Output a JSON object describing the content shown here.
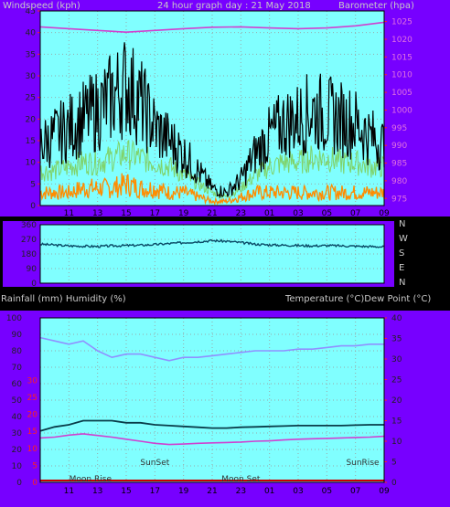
{
  "chart_data": [
    {
      "type": "line",
      "title": "24 hour graph day : 21 May 2018",
      "ylabel_left": "Windspeed (kph)",
      "ylabel_right": "Barometer (hpa)",
      "x_ticks": [
        "11",
        "13",
        "15",
        "17",
        "19",
        "21",
        "23",
        "01",
        "03",
        "05",
        "07",
        "09"
      ],
      "y_left_ticks": [
        0,
        5,
        10,
        15,
        20,
        25,
        30,
        35,
        40,
        45
      ],
      "y_left_range": [
        0,
        45
      ],
      "y_right_ticks": [
        975,
        980,
        985,
        990,
        995,
        1000,
        1005,
        1010,
        1015,
        1020,
        1025
      ],
      "y_right_range": [
        973,
        1028
      ],
      "colors": {
        "gust": "#000000",
        "avg": "#7fd36a",
        "windrun": "#ff8c00",
        "barometer": "#d040d0",
        "bg": "#80ffff",
        "frame": "#7700ff"
      },
      "series": [
        {
          "key": "gust",
          "hours": [
            9,
            10,
            11,
            12,
            13,
            14,
            15,
            16,
            17,
            18,
            19,
            20,
            21,
            22,
            23,
            24,
            25,
            26,
            27,
            28,
            29,
            30,
            31,
            32,
            33
          ],
          "values": [
            14,
            16,
            18,
            20,
            22,
            25,
            28,
            24,
            18,
            15,
            12,
            8,
            4,
            3,
            6,
            12,
            16,
            19,
            20,
            22,
            21,
            20,
            19,
            16,
            14
          ]
        },
        {
          "key": "avg",
          "hours": [
            9,
            10,
            11,
            12,
            13,
            14,
            15,
            16,
            17,
            18,
            19,
            20,
            21,
            22,
            23,
            24,
            25,
            26,
            27,
            28,
            29,
            30,
            31,
            32,
            33
          ],
          "values": [
            8,
            8,
            9,
            10,
            10,
            11,
            12,
            11,
            10,
            9,
            7,
            5,
            3,
            2,
            4,
            7,
            9,
            10,
            10,
            11,
            11,
            10,
            10,
            9,
            9
          ]
        },
        {
          "key": "windrun",
          "hours": [
            9,
            10,
            11,
            12,
            13,
            14,
            15,
            16,
            17,
            18,
            19,
            20,
            21,
            22,
            23,
            24,
            25,
            26,
            27,
            28,
            29,
            30,
            31,
            32,
            33
          ],
          "values": [
            3,
            3,
            3,
            4,
            4,
            4,
            5,
            4,
            4,
            3,
            3,
            2,
            1,
            1,
            2,
            3,
            3,
            3,
            3,
            3,
            3,
            3,
            3,
            3,
            3
          ]
        },
        {
          "key": "barometer",
          "hours": [
            9,
            11,
            13,
            15,
            17,
            19,
            21,
            23,
            25,
            27,
            29,
            31,
            33
          ],
          "values": [
            1023.5,
            1023.0,
            1022.5,
            1022.0,
            1022.5,
            1023.0,
            1023.4,
            1023.5,
            1023.2,
            1023.0,
            1023.2,
            1023.8,
            1024.8
          ]
        }
      ]
    },
    {
      "type": "line",
      "x_ticks": [
        "11",
        "13",
        "15",
        "17",
        "19",
        "21",
        "23",
        "01",
        "03",
        "05",
        "07",
        "09"
      ],
      "y_ticks": [
        0,
        90,
        180,
        270,
        360
      ],
      "y_range": [
        0,
        360
      ],
      "right_labels": [
        "N",
        "W",
        "S",
        "E",
        "N"
      ],
      "series": [
        {
          "key": "direction",
          "hours": [
            9,
            10,
            11,
            12,
            13,
            14,
            15,
            16,
            17,
            18,
            19,
            20,
            21,
            22,
            23,
            24,
            25,
            26,
            27,
            28,
            29,
            30,
            31,
            32,
            33
          ],
          "values": [
            240,
            235,
            230,
            228,
            226,
            230,
            232,
            234,
            238,
            244,
            250,
            256,
            262,
            258,
            250,
            240,
            236,
            234,
            232,
            230,
            232,
            230,
            228,
            226,
            224
          ]
        }
      ]
    },
    {
      "type": "line",
      "ylabel_left": "Rainfall (mm)  Humidity (%)",
      "ylabel_right": "Temperature (°C)Dew Point (°C)",
      "x_ticks": [
        "11",
        "13",
        "15",
        "17",
        "19",
        "21",
        "23",
        "01",
        "03",
        "05",
        "07",
        "09"
      ],
      "y_left_ticks": [
        0,
        10,
        20,
        30,
        40,
        50,
        60,
        70,
        80,
        90,
        100
      ],
      "y_left_range": [
        0,
        100
      ],
      "y_rain_ticks": [
        0,
        5,
        10,
        15,
        20,
        25,
        30
      ],
      "y_right_ticks": [
        0,
        5,
        10,
        15,
        20,
        25,
        30,
        35,
        40
      ],
      "y_right_range": [
        0,
        40
      ],
      "annotations": [
        {
          "text": "Moon Rise",
          "hour": 12.5
        },
        {
          "text": "SunSet",
          "hour": 17
        },
        {
          "text": "Moon Set",
          "hour": 23
        },
        {
          "text": "SunRise",
          "hour": 31.5
        }
      ],
      "series": [
        {
          "key": "humidity",
          "hours": [
            9,
            10,
            11,
            12,
            13,
            14,
            15,
            16,
            17,
            18,
            19,
            20,
            21,
            22,
            23,
            24,
            25,
            26,
            27,
            28,
            29,
            30,
            31,
            32,
            33
          ],
          "values": [
            88,
            86,
            84,
            86,
            80,
            76,
            78,
            78,
            76,
            74,
            76,
            76,
            77,
            78,
            79,
            80,
            80,
            80,
            81,
            81,
            82,
            83,
            83,
            84,
            84
          ]
        },
        {
          "key": "temperature",
          "hours": [
            9,
            10,
            11,
            12,
            13,
            14,
            15,
            16,
            17,
            18,
            19,
            20,
            21,
            22,
            23,
            24,
            25,
            26,
            27,
            28,
            29,
            30,
            31,
            32,
            33
          ],
          "values": [
            12.5,
            13.5,
            14.0,
            15.0,
            15.0,
            15.0,
            14.5,
            14.5,
            14.0,
            13.8,
            13.6,
            13.4,
            13.2,
            13.2,
            13.4,
            13.5,
            13.6,
            13.7,
            13.8,
            13.8,
            13.8,
            13.8,
            13.9,
            14.0,
            14.0
          ]
        },
        {
          "key": "dewpoint",
          "hours": [
            9,
            10,
            11,
            12,
            13,
            14,
            15,
            16,
            17,
            18,
            19,
            20,
            21,
            22,
            23,
            24,
            25,
            26,
            27,
            28,
            29,
            30,
            31,
            32,
            33
          ],
          "values": [
            10.8,
            11.0,
            11.5,
            11.8,
            11.4,
            11.0,
            10.5,
            10.0,
            9.5,
            9.2,
            9.3,
            9.5,
            9.6,
            9.7,
            9.8,
            10.0,
            10.1,
            10.3,
            10.5,
            10.6,
            10.7,
            10.8,
            10.9,
            11.0,
            11.2
          ]
        },
        {
          "key": "rainfall",
          "hours": [
            9,
            33
          ],
          "values": [
            0,
            0
          ]
        }
      ]
    }
  ]
}
